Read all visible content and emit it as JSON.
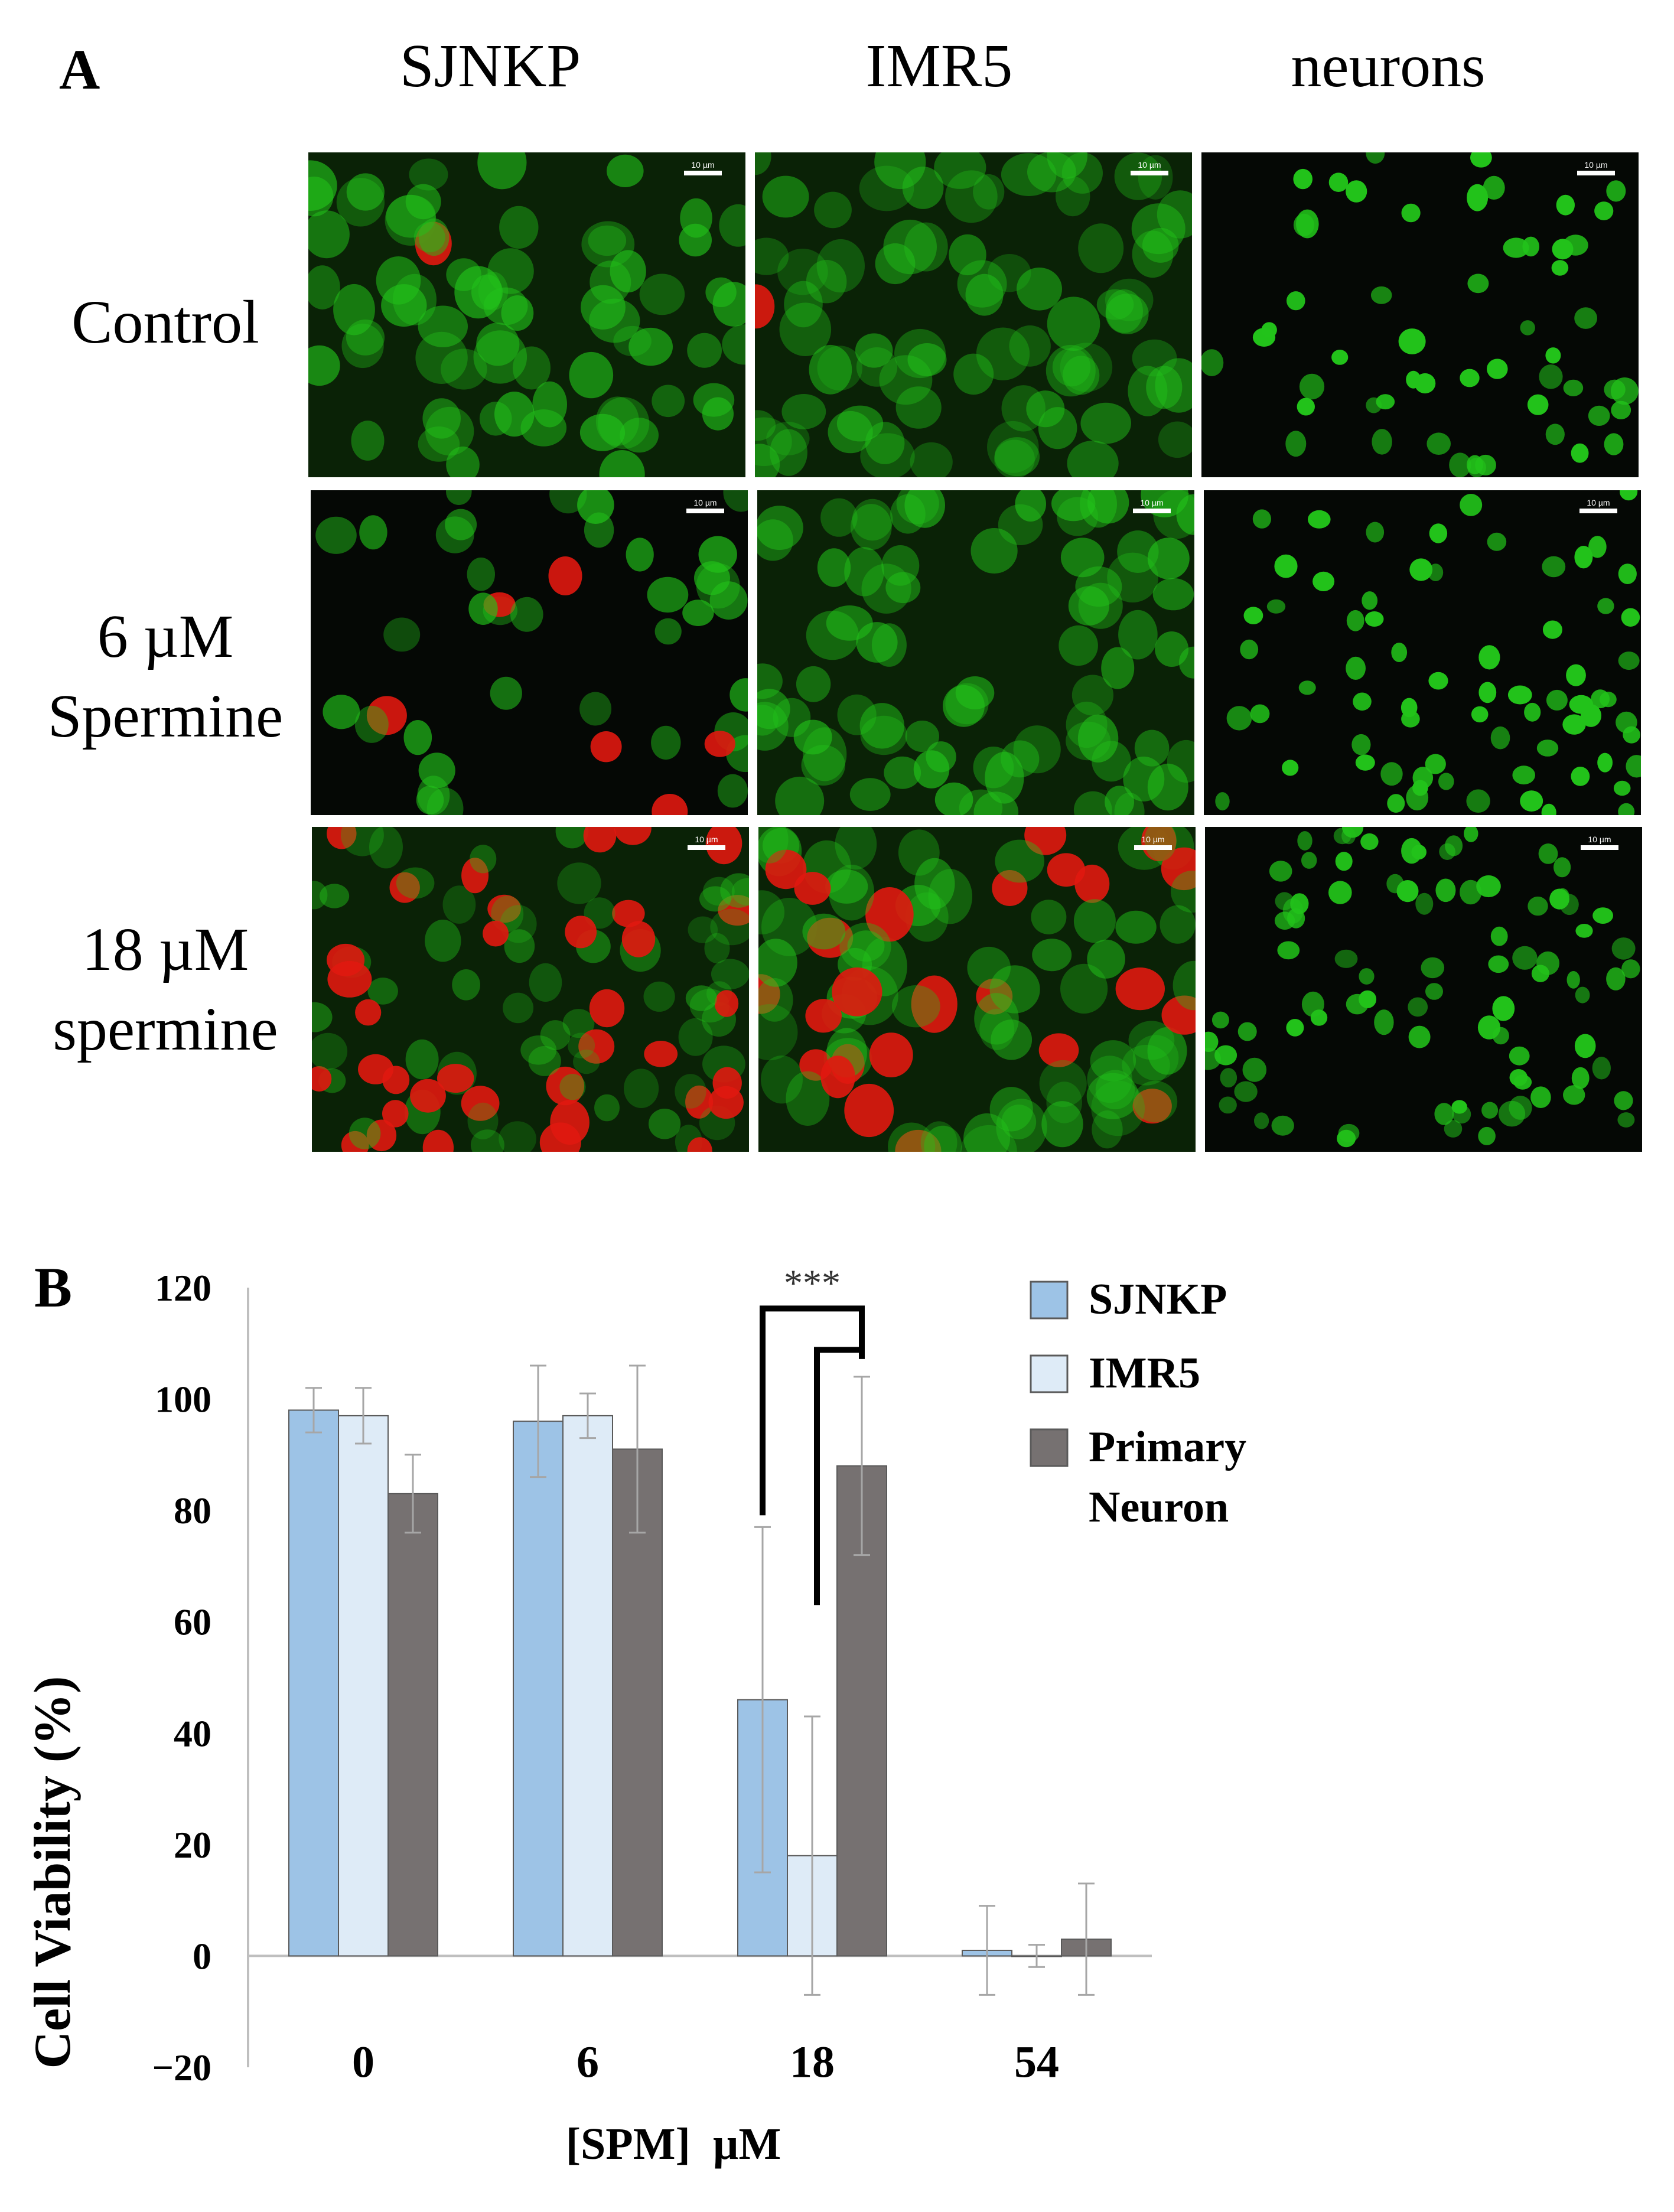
{
  "panel_a": {
    "letter": "A",
    "column_headers": [
      "SJNKP",
      "IMR5",
      "neurons"
    ],
    "row_labels": [
      [
        "Control"
      ],
      [
        "6 µM",
        "Spermine"
      ],
      [
        "18 µM",
        "spermine"
      ]
    ],
    "scale_bar_label": "10 µm",
    "stain_colors": {
      "live": "#22c21a",
      "dead": "#e01810",
      "background": "#050805"
    }
  },
  "panel_b": {
    "letter": "B",
    "chart_data": {
      "type": "bar",
      "title": "",
      "xlabel": "[SPM]  µM",
      "ylabel": "Cell Viability (%)",
      "categories": [
        "0",
        "6",
        "18",
        "54"
      ],
      "ylim": [
        -20,
        120
      ],
      "yticks": [
        -20,
        0,
        20,
        40,
        60,
        80,
        100,
        120
      ],
      "grid": false,
      "legend_position": "top-right",
      "series": [
        {
          "name": "SJNKP",
          "color": "#9dc3e6",
          "values": [
            98,
            96,
            46,
            1
          ],
          "errors": [
            4,
            10,
            31,
            8
          ]
        },
        {
          "name": "IMR5",
          "color": "#deebf7",
          "values": [
            97,
            97,
            18,
            0
          ],
          "errors": [
            5,
            4,
            25,
            2
          ]
        },
        {
          "name": "Primary\nNeuron",
          "color": "#767171",
          "values": [
            83,
            91,
            88,
            3
          ],
          "errors": [
            7,
            15,
            16,
            10
          ]
        }
      ],
      "annotations": [
        {
          "text": "***",
          "type": "significance-bracket",
          "category": "18"
        }
      ]
    }
  }
}
